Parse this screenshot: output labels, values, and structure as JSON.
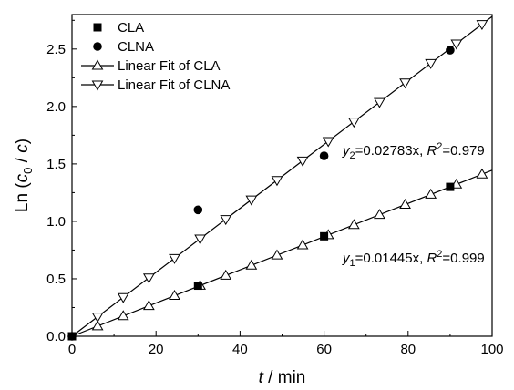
{
  "chart_data": {
    "type": "scatter",
    "xlabel_var": "t",
    "xlabel_unit": " / min",
    "ylabel_prefix": "Ln (",
    "ylabel_c0": "c",
    "ylabel_sub": "0",
    "ylabel_mid": " / ",
    "ylabel_c": "c",
    "ylabel_suffix": ")",
    "xlim": [
      0,
      100
    ],
    "ylim": [
      0,
      2.8
    ],
    "xticks": [
      "0",
      "20",
      "40",
      "60",
      "80",
      "100"
    ],
    "yticks": [
      "0.0",
      "0.5",
      "1.0",
      "1.5",
      "2.0",
      "2.5"
    ],
    "grid": false,
    "legend_position": "top-left",
    "series": [
      {
        "name": "CLA",
        "marker": "square",
        "x": [
          0,
          30,
          60,
          90
        ],
        "y": [
          0.0,
          0.44,
          0.87,
          1.3
        ]
      },
      {
        "name": "CLNA",
        "marker": "circle",
        "x": [
          0,
          30,
          60,
          90
        ],
        "y": [
          0.0,
          1.1,
          1.57,
          2.49
        ]
      },
      {
        "name": "Linear Fit of CLA",
        "marker": "triangle-up",
        "line": true,
        "slope": 0.01445,
        "x_range": [
          0,
          100
        ],
        "marker_step": 6.1
      },
      {
        "name": "Linear Fit of CLNA",
        "marker": "triangle-down",
        "line": true,
        "slope": 0.02783,
        "x_range": [
          0,
          100
        ],
        "marker_step": 6.1
      }
    ],
    "annotations": [
      {
        "id": "cla",
        "y": "y",
        "sub": "1",
        "eq": "=0.01445x, ",
        "r": "R",
        "sup": "2",
        "val": "=0.999"
      },
      {
        "id": "clna",
        "y": "y",
        "sub": "2",
        "eq": "=0.02783x, ",
        "r": "R",
        "sup": "2",
        "val": "=0.979"
      }
    ]
  }
}
